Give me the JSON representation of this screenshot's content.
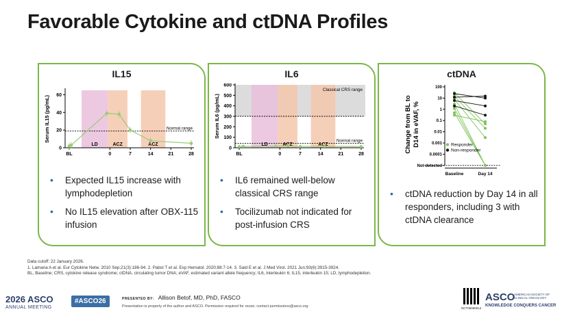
{
  "title": "Favorable Cytokine and ctDNA Profiles",
  "panels": {
    "il15": {
      "title": "IL15",
      "bullets": [
        "Expected IL15 increase with lymphodepletion",
        "No IL15 elevation after OBX-115 infusion"
      ]
    },
    "il6": {
      "title": "IL6",
      "bullets": [
        "IL6 remained well-below classical CRS range",
        "Tocilizumab not indicated for post-infusion CRS"
      ]
    },
    "ctdna": {
      "title": "ctDNA",
      "bullets": [
        "ctDNA reduction by Day 14 in all responders, including 3 with ctDNA clearance"
      ]
    }
  },
  "chart_data": [
    {
      "type": "line",
      "ylabel": "Serum IL15 (pg/mL)",
      "x_ticks": [
        "BL",
        "0",
        "7",
        "14",
        "21",
        "28"
      ],
      "x": [
        "BL",
        -1,
        0,
        2,
        7,
        14,
        28
      ],
      "values": [
        2,
        3,
        39,
        38,
        20,
        8,
        5
      ],
      "ylim": [
        0,
        65
      ],
      "y_ticks": [
        0,
        20,
        40,
        60
      ],
      "normal_range_label": "Normal range",
      "normal_range_upper": 19,
      "regions": [
        "LD",
        "ACZ",
        "ACZ"
      ],
      "colors": {
        "line": "#9ccc7a",
        "ld": "#e9bfdc",
        "acz": "#f5c7ad"
      }
    },
    {
      "type": "line",
      "ylabel": "Serum IL6 (pg/mL)",
      "x_ticks": [
        "BL",
        "0",
        "7",
        "14",
        "21",
        "28"
      ],
      "ylim": [
        0,
        600
      ],
      "y_ticks": [
        0,
        100,
        200,
        300,
        400,
        500,
        600
      ],
      "values": [
        12,
        14,
        15,
        18,
        13,
        14,
        12
      ],
      "crs_range_label": "Classical CRS range",
      "crs_range_lower": 300,
      "normal_range_label": "Normal range",
      "normal_range_upper": 43,
      "regions": [
        "LD",
        "ACZ",
        "ACZ"
      ]
    },
    {
      "type": "line",
      "ylabel": "Change from BL to D14 in eVAF, %",
      "categories": [
        "Baseline",
        "Day 14"
      ],
      "y_ticks": [
        "100",
        "10",
        "1",
        "0.1",
        "0.01",
        "0.001",
        "0.0001",
        "Not detected"
      ],
      "legend": [
        "Responder",
        "Non-responder"
      ],
      "legend_position": "bottom-left",
      "series": [
        {
          "group": "Responder",
          "values": [
            30,
            0.05
          ]
        },
        {
          "group": "Responder",
          "values": [
            15,
            0.02
          ]
        },
        {
          "group": "Responder",
          "values": [
            8,
            0.003
          ]
        },
        {
          "group": "Responder",
          "values": [
            3,
            "Not detected"
          ]
        },
        {
          "group": "Responder",
          "values": [
            1.2,
            "Not detected"
          ]
        },
        {
          "group": "Responder",
          "values": [
            0.5,
            "Not detected"
          ]
        },
        {
          "group": "Responder",
          "values": [
            0.3,
            0.08
          ]
        },
        {
          "group": "Non-responder",
          "values": [
            25,
            10
          ]
        },
        {
          "group": "Non-responder",
          "values": [
            6,
            2
          ]
        },
        {
          "group": "Non-responder",
          "values": [
            2,
            0.3
          ]
        },
        {
          "group": "Non-responder",
          "values": [
            12,
            15
          ]
        }
      ],
      "colors": {
        "Responder": "#7fc25a",
        "Non-responder": "#111111"
      }
    }
  ],
  "footnote": {
    "cutoff": "Data cutoff: 22 January 2026.",
    "refs": "1. Lamana A et al. Eur Cytokine Netw. 2010 Sep;21(3):186-94. 2. Pabst T et al. Exp Hematol. 2020;88:7-14. 3. Said E et al. J Med Virol. 2021 Jun;93(6):3915-3924.",
    "abbrev": "BL, Baseline; CRS, cytokine release syndrome; ctDNA, circulating tumor DNA; eVAF, estimated variant allele frequency; IL6, interleukin 6; IL15, interleukin 15; LD, lymphodepletion."
  },
  "footer": {
    "meeting_year": "2026 ASCO",
    "meeting_name": "ANNUAL MEETING",
    "hashtag": "#ASCO26",
    "presented_by_label": "PRESENTED BY:",
    "presenter": "Allison Betof, MD, PhD, FASCO",
    "permission": "Presentation is property of the author and ASCO. Permission required for reuse; contact permissions@asco.org",
    "nct": "NCT06060613",
    "asco_logo": "ASCO",
    "asco_sub": "AMERICAN SOCIETY OF CLINICAL ONCOLOGY",
    "tagline": "KNOWLEDGE CONQUERS CANCER"
  }
}
